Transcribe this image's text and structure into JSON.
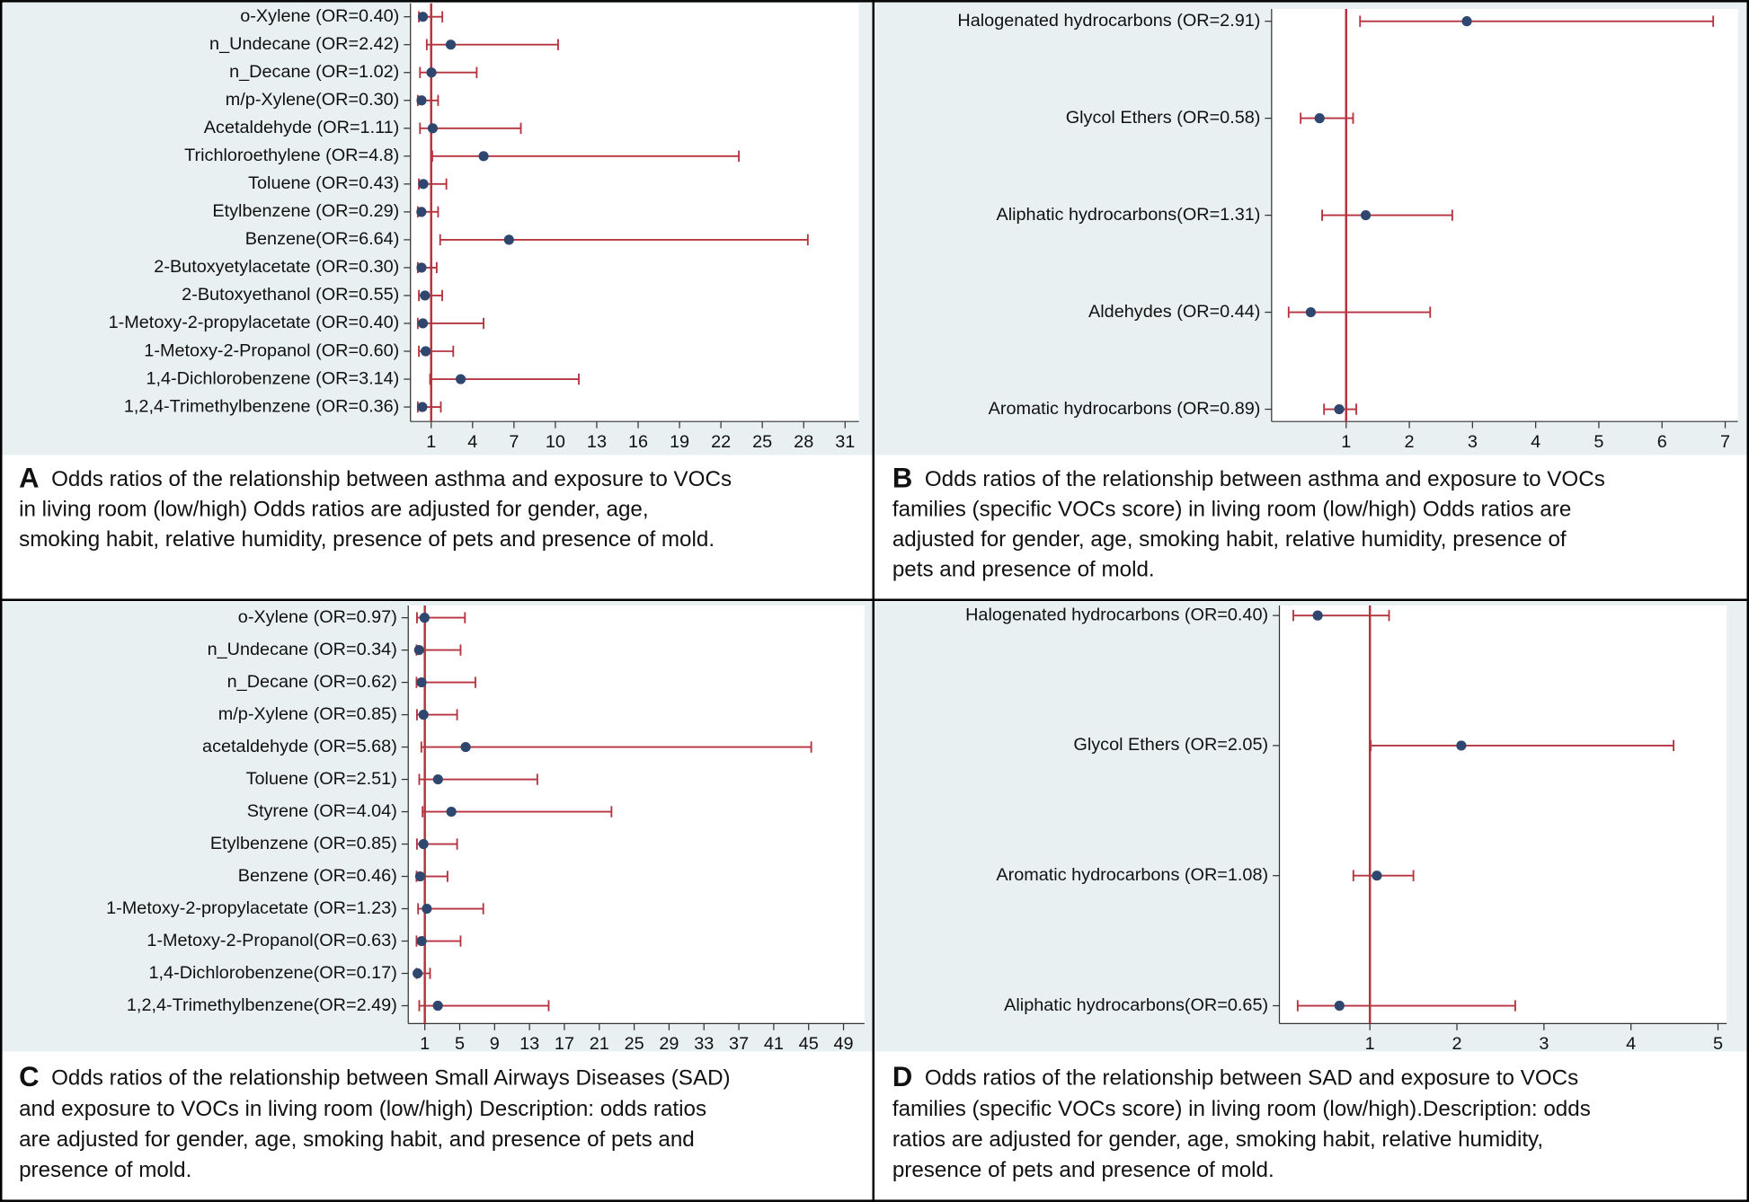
{
  "chart_data": [
    {
      "type": "forest",
      "panel_label": "A",
      "caption_lines": [
        "Odds ratios of the relationship between asthma and exposure to VOCs",
        "in living room (low/high) Odds ratios are adjusted for gender, age,",
        "smoking habit, relative humidity, presence of pets and  presence of mold."
      ],
      "categories": [
        "o-Xylene (OR=0.40)",
        "n_Undecane (OR=2.42)",
        "n_Decane (OR=1.02)",
        "m/p-Xylene(OR=0.30)",
        "Acetaldehyde (OR=1.11)",
        "Trichloroethylene (OR=4.8)",
        "Toluene (OR=0.43)",
        "Etylbenzene (OR=0.29)",
        "Benzene(OR=6.64)",
        "2-Butoxyetylacetate (OR=0.30)",
        "2-Butoxyethanol (OR=0.55)",
        "1-Metoxy-2-propylacetate (OR=0.40)",
        "1-Metoxy-2-Propanol (OR=0.60)",
        "1,4-Dichlorobenzene (OR=3.14)",
        "1,2,4-Trimethylbenzene (OR=0.36)"
      ],
      "values": [
        0.4,
        2.42,
        1.02,
        0.3,
        1.11,
        4.8,
        0.43,
        0.29,
        6.64,
        0.3,
        0.55,
        0.4,
        0.6,
        3.14,
        0.36
      ],
      "lower": [
        0.11,
        0.68,
        0.19,
        0.03,
        0.19,
        1.08,
        0.11,
        0.03,
        1.65,
        0.03,
        0.11,
        0.03,
        0.11,
        0.92,
        0.03
      ],
      "upper": [
        1.81,
        10.2,
        4.3,
        1.5,
        7.5,
        23.3,
        2.1,
        1.5,
        28.3,
        1.4,
        1.8,
        4.8,
        2.6,
        11.7,
        1.7
      ],
      "xlim": [
        -0.5,
        32
      ],
      "xticks": [
        1,
        4,
        7,
        10,
        13,
        16,
        19,
        22,
        25,
        28,
        31
      ],
      "reference_line": 1,
      "ci_color": "#b5343f",
      "point_color": "#2f466e"
    },
    {
      "type": "forest",
      "panel_label": "B",
      "caption_lines": [
        "Odds ratios of the relationship between asthma and exposure to VOCs",
        "families (specific VOCs score) in living room (low/high) Odds ratios are",
        "adjusted for gender, age, smoking habit, relative humidity, presence of",
        "pets and  presence of mold."
      ],
      "categories": [
        "Halogenated hydrocarbons (OR=2.91)",
        "Glycol Ethers (OR=0.58)",
        "Aliphatic hydrocarbons(OR=1.31)",
        "Aldehydes (OR=0.44)",
        "Aromatic hydrocarbons (OR=0.89)"
      ],
      "values": [
        2.91,
        0.58,
        1.31,
        0.44,
        0.89
      ],
      "lower": [
        1.22,
        0.28,
        0.62,
        0.09,
        0.65
      ],
      "upper": [
        6.81,
        1.11,
        2.68,
        2.33,
        1.16
      ],
      "xlim": [
        -0.18,
        7.2
      ],
      "xticks": [
        1,
        2,
        3,
        4,
        5,
        6,
        7
      ],
      "reference_line": 1,
      "ci_color": "#b5343f",
      "point_color": "#2f466e"
    },
    {
      "type": "forest",
      "panel_label": "C",
      "caption_lines": [
        "Odds ratios of the relationship between Small Airways Diseases (SAD)",
        "and exposure to VOCs in living room (low/high) Description: odds ratios",
        "are adjusted for gender, age, smoking habit, and presence of pets and",
        "presence of mold."
      ],
      "categories": [
        "o-Xylene (OR=0.97)",
        "n_Undecane (OR=0.34)",
        "n_Decane (OR=0.62)",
        "m/p-Xylene (OR=0.85)",
        "acetaldehyde (OR=5.68)",
        "Toluene (OR=2.51)",
        "Styrene (OR=4.04)",
        "Etylbenzene (OR=0.85)",
        "Benzene (OR=0.46)",
        "1-Metoxy-2-propylacetate (OR=1.23)",
        "1-Metoxy-2-Propanol(OR=0.63)",
        "1,4-Dichlorobenzene(OR=0.17)",
        "1,2,4-Trimethylbenzene(OR=2.49)"
      ],
      "values": [
        0.97,
        0.34,
        0.62,
        0.85,
        5.68,
        2.51,
        4.04,
        0.85,
        0.46,
        1.23,
        0.63,
        0.17,
        2.49
      ],
      "lower": [
        0.1,
        0.05,
        0.05,
        0.1,
        0.6,
        0.36,
        0.74,
        0.1,
        0.05,
        0.23,
        0.05,
        0.05,
        0.36
      ],
      "upper": [
        5.6,
        5.1,
        6.8,
        4.7,
        45.3,
        13.9,
        22.4,
        4.7,
        3.6,
        7.7,
        5.1,
        1.6,
        15.2
      ],
      "xlim": [
        -0.9,
        51.4
      ],
      "xticks": [
        1,
        5,
        9,
        13,
        17,
        21,
        25,
        29,
        33,
        37,
        41,
        45,
        49
      ],
      "reference_line": 1,
      "ci_color": "#b5343f",
      "point_color": "#2f466e"
    },
    {
      "type": "forest",
      "panel_label": "D",
      "caption_lines": [
        "Odds ratios of the relationship between SAD  and exposure to VOCs",
        "families (specific VOCs score)   in living room (low/high).Description: odds",
        "ratios are adjusted for gender, age, smoking habit, relative humidity,",
        "presence of pets and  presence of mold."
      ],
      "categories": [
        "Halogenated hydrocarbons (OR=0.40)",
        "Glycol Ethers (OR=2.05)",
        "Aromatic hydrocarbons (OR=1.08)",
        "Aliphatic hydrocarbons(OR=0.65)"
      ],
      "values": [
        0.4,
        2.05,
        1.08,
        0.65
      ],
      "lower": [
        0.12,
        1.01,
        0.81,
        0.17
      ],
      "upper": [
        1.22,
        4.49,
        1.5,
        2.67
      ],
      "xlim": [
        -0.04,
        5.1
      ],
      "xticks": [
        1,
        2,
        3,
        4,
        5
      ],
      "reference_line": 1,
      "ci_color": "#b5343f",
      "point_color": "#2f466e"
    }
  ]
}
